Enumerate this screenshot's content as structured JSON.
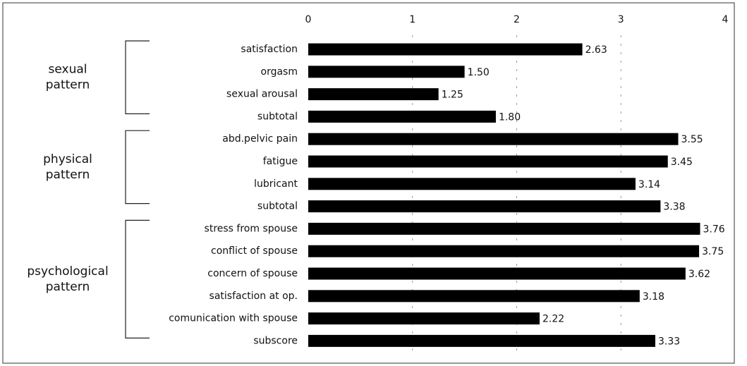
{
  "chart_data": {
    "type": "bar",
    "orientation": "horizontal",
    "categories": [
      "satisfaction",
      "orgasm",
      "sexual arousal",
      "subtotal",
      "abd.pelvic pain",
      "fatigue",
      "lubricant",
      "subtotal",
      "stress from spouse",
      "conflict of spouse",
      "concern of spouse",
      "satisfaction at op.",
      "comunication with spouse",
      "subscore"
    ],
    "values": [
      2.63,
      1.5,
      1.25,
      1.8,
      3.55,
      3.45,
      3.14,
      3.38,
      3.76,
      3.75,
      3.62,
      3.18,
      2.22,
      3.33
    ],
    "value_labels": [
      "2.63",
      "1.50",
      "1.25",
      "1.80",
      "3.55",
      "3.45",
      "3.14",
      "3.38",
      "3.76",
      "3.75",
      "3.62",
      "3.18",
      "2.22",
      "3.33"
    ],
    "color": "#000000",
    "xlim": [
      0,
      4
    ],
    "xticks": [
      0,
      1,
      2,
      3,
      4
    ],
    "grid": true,
    "groups": [
      [
        "sexual",
        "pattern"
      ],
      [
        "physical",
        "pattern"
      ],
      [
        "psychological",
        "pattern"
      ]
    ]
  }
}
